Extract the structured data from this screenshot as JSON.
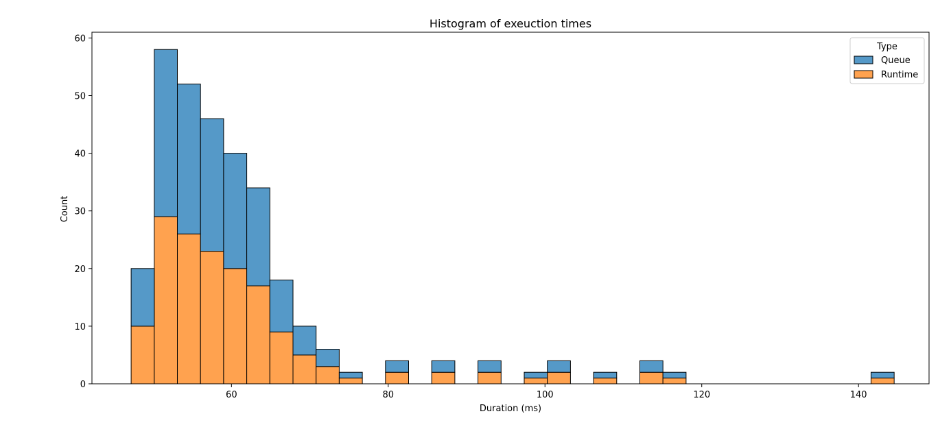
{
  "chart_data": {
    "type": "bar",
    "subtype": "stacked-histogram",
    "title": "Histogram of exeuction times",
    "xlabel": "Duration (ms)",
    "ylabel": "Count",
    "xlim": [
      42.2,
      149.0
    ],
    "ylim": [
      0,
      61
    ],
    "x_ticks": [
      60,
      80,
      100,
      120,
      140
    ],
    "y_ticks": [
      0,
      10,
      20,
      30,
      40,
      50,
      60
    ],
    "grid": false,
    "legend": {
      "title": "Type",
      "placement": "top-right",
      "entries": [
        {
          "label": "Queue",
          "color": "#5599C8"
        },
        {
          "label": "Runtime",
          "color": "#FFA24F"
        }
      ]
    },
    "bins": [
      {
        "start": 47.2,
        "end": 50.15
      },
      {
        "start": 50.15,
        "end": 53.1
      },
      {
        "start": 53.1,
        "end": 56.05
      },
      {
        "start": 56.05,
        "end": 59.0
      },
      {
        "start": 59.0,
        "end": 61.95
      },
      {
        "start": 61.95,
        "end": 64.9
      },
      {
        "start": 64.9,
        "end": 67.85
      },
      {
        "start": 67.85,
        "end": 70.8
      },
      {
        "start": 70.8,
        "end": 73.75
      },
      {
        "start": 73.75,
        "end": 76.7
      },
      {
        "start": 79.65,
        "end": 82.6
      },
      {
        "start": 85.55,
        "end": 88.5
      },
      {
        "start": 91.45,
        "end": 94.4
      },
      {
        "start": 97.35,
        "end": 100.3
      },
      {
        "start": 100.3,
        "end": 103.25
      },
      {
        "start": 106.2,
        "end": 109.15
      },
      {
        "start": 112.1,
        "end": 115.05
      },
      {
        "start": 115.05,
        "end": 118.0
      },
      {
        "start": 141.6,
        "end": 144.55
      }
    ],
    "series": [
      {
        "name": "Runtime",
        "color": "#FFA24F",
        "values": [
          10,
          29,
          26,
          23,
          20,
          17,
          9,
          5,
          3,
          1,
          2,
          2,
          2,
          1,
          2,
          1,
          2,
          1,
          1
        ]
      },
      {
        "name": "Queue",
        "color": "#5599C8",
        "values": [
          10,
          29,
          26,
          23,
          20,
          17,
          9,
          5,
          3,
          1,
          2,
          2,
          2,
          1,
          2,
          1,
          2,
          1,
          1
        ]
      }
    ]
  }
}
